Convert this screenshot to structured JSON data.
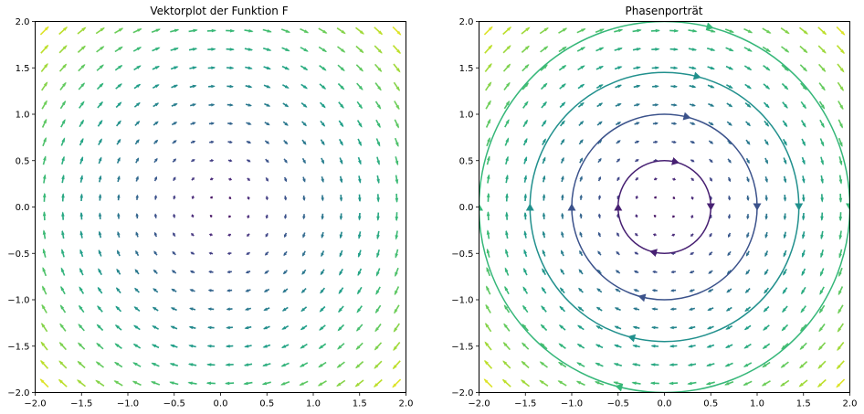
{
  "chart_data": [
    {
      "type": "quiver",
      "title": "Vektorplot der Funktion F",
      "xlabel": "",
      "ylabel": "",
      "xlim": [
        -2.0,
        2.0
      ],
      "ylim": [
        -2.0,
        2.0
      ],
      "xticks": [
        "−2.0",
        "−1.5",
        "−1.0",
        "−0.5",
        "0.0",
        "0.5",
        "1.0",
        "1.5",
        "2.0"
      ],
      "yticks": [
        "2.0",
        "1.5",
        "1.0",
        "0.5",
        "0.0",
        "−0.5",
        "−1.0",
        "−1.5",
        "−2.0"
      ],
      "field": {
        "u": "y",
        "v": "-x",
        "colormap": "viridis",
        "color_by": "magnitude"
      },
      "grid": false
    },
    {
      "type": "streamline",
      "title": "Phasenporträt",
      "xlabel": "",
      "ylabel": "",
      "xlim": [
        -2.0,
        2.0
      ],
      "ylim": [
        -2.0,
        2.0
      ],
      "xticks": [
        "−2.0",
        "−1.5",
        "−1.0",
        "−0.5",
        "0.0",
        "0.5",
        "1.0",
        "1.5",
        "2.0"
      ],
      "yticks": [
        "2.0",
        "1.5",
        "1.0",
        "0.5",
        "0.0",
        "−0.5",
        "−1.0",
        "−1.5",
        "−2.0"
      ],
      "field": {
        "u": "y",
        "v": "-x",
        "colormap": "viridis",
        "color_by": "magnitude"
      },
      "trajectories": [
        {
          "radius": 0.5,
          "color": "#482173"
        },
        {
          "radius": 1.0,
          "color": "#3b528b"
        },
        {
          "radius": 1.45,
          "color": "#21908d"
        },
        {
          "radius": 2.0,
          "color": "#35b779"
        }
      ],
      "grid": false
    }
  ]
}
